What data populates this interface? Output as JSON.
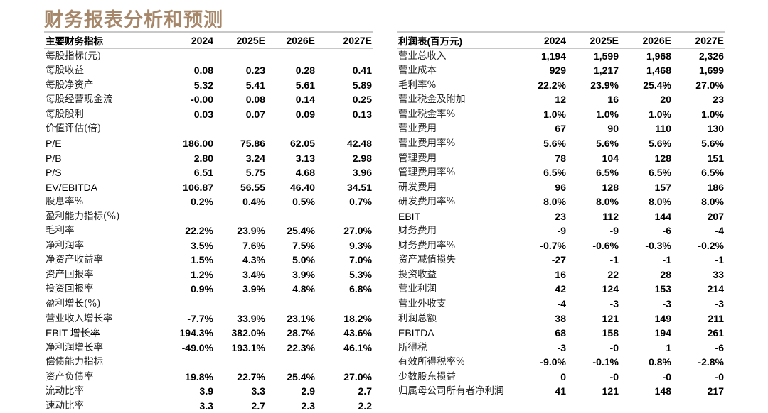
{
  "title": "财务报表分析和预测",
  "left_table": {
    "headers": [
      "主要财务指标",
      "2024",
      "2025E",
      "2026E",
      "2027E"
    ],
    "rows": [
      [
        "每股指标(元)",
        "",
        "",
        "",
        ""
      ],
      [
        "每股收益",
        "0.08",
        "0.23",
        "0.28",
        "0.41"
      ],
      [
        "每股净资产",
        "5.32",
        "5.41",
        "5.61",
        "5.89"
      ],
      [
        "每股经营现金流",
        "-0.00",
        "0.08",
        "0.14",
        "0.25"
      ],
      [
        "每股股利",
        "0.03",
        "0.07",
        "0.09",
        "0.13"
      ],
      [
        "价值评估(倍)",
        "",
        "",
        "",
        ""
      ],
      [
        "P/E",
        "186.00",
        "75.86",
        "62.05",
        "42.48"
      ],
      [
        "P/B",
        "2.80",
        "3.24",
        "3.13",
        "2.98"
      ],
      [
        "P/S",
        "6.51",
        "5.75",
        "4.68",
        "3.96"
      ],
      [
        "EV/EBITDA",
        "106.87",
        "56.55",
        "46.40",
        "34.51"
      ],
      [
        "股息率%",
        "0.2%",
        "0.4%",
        "0.5%",
        "0.7%"
      ],
      [
        "盈利能力指标(%)",
        "",
        "",
        "",
        ""
      ],
      [
        "毛利率",
        "22.2%",
        "23.9%",
        "25.4%",
        "27.0%"
      ],
      [
        "净利润率",
        "3.5%",
        "7.6%",
        "7.5%",
        "9.3%"
      ],
      [
        "净资产收益率",
        "1.5%",
        "4.3%",
        "5.0%",
        "7.0%"
      ],
      [
        "资产回报率",
        "1.2%",
        "3.4%",
        "3.9%",
        "5.3%"
      ],
      [
        "投资回报率",
        "0.9%",
        "3.9%",
        "4.8%",
        "6.8%"
      ],
      [
        "盈利增长(%)",
        "",
        "",
        "",
        ""
      ],
      [
        "营业收入增长率",
        "-7.7%",
        "33.9%",
        "23.1%",
        "18.2%"
      ],
      [
        "EBIT 增长率",
        "194.3%",
        "382.0%",
        "28.7%",
        "43.6%"
      ],
      [
        "净利润增长率",
        "-49.0%",
        "193.1%",
        "22.3%",
        "46.1%"
      ],
      [
        "偿债能力指标",
        "",
        "",
        "",
        ""
      ],
      [
        "资产负债率",
        "19.8%",
        "22.7%",
        "25.4%",
        "27.0%"
      ],
      [
        "流动比率",
        "3.9",
        "3.3",
        "2.9",
        "2.7"
      ],
      [
        "速动比率",
        "3.3",
        "2.7",
        "2.3",
        "2.2"
      ]
    ]
  },
  "right_table": {
    "headers": [
      "利润表(百万元)",
      "2024",
      "2025E",
      "2026E",
      "2027E"
    ],
    "rows": [
      [
        "营业总收入",
        "1,194",
        "1,599",
        "1,968",
        "2,326"
      ],
      [
        "营业成本",
        "929",
        "1,217",
        "1,468",
        "1,699"
      ],
      [
        "毛利率%",
        "22.2%",
        "23.9%",
        "25.4%",
        "27.0%"
      ],
      [
        "营业税金及附加",
        "12",
        "16",
        "20",
        "23"
      ],
      [
        "营业税金率%",
        "1.0%",
        "1.0%",
        "1.0%",
        "1.0%"
      ],
      [
        "营业费用",
        "67",
        "90",
        "110",
        "130"
      ],
      [
        "营业费用率%",
        "5.6%",
        "5.6%",
        "5.6%",
        "5.6%"
      ],
      [
        "管理费用",
        "78",
        "104",
        "128",
        "151"
      ],
      [
        "管理费用率%",
        "6.5%",
        "6.5%",
        "6.5%",
        "6.5%"
      ],
      [
        "研发费用",
        "96",
        "128",
        "157",
        "186"
      ],
      [
        "研发费用率%",
        "8.0%",
        "8.0%",
        "8.0%",
        "8.0%"
      ],
      [
        "EBIT",
        "23",
        "112",
        "144",
        "207"
      ],
      [
        "财务费用",
        "-9",
        "-9",
        "-6",
        "-4"
      ],
      [
        "财务费用率%",
        "-0.7%",
        "-0.6%",
        "-0.3%",
        "-0.2%"
      ],
      [
        "资产减值损失",
        "-27",
        "-1",
        "-1",
        "-1"
      ],
      [
        "投资收益",
        "16",
        "22",
        "28",
        "33"
      ],
      [
        "营业利润",
        "42",
        "124",
        "153",
        "214"
      ],
      [
        "营业外收支",
        "-4",
        "-3",
        "-3",
        "-3"
      ],
      [
        "利润总额",
        "38",
        "121",
        "149",
        "211"
      ],
      [
        "EBITDA",
        "68",
        "158",
        "194",
        "261"
      ],
      [
        "所得税",
        "-3",
        "-0",
        "1",
        "-6"
      ],
      [
        "有效所得税率%",
        "-9.0%",
        "-0.1%",
        "0.8%",
        "-2.8%"
      ],
      [
        "少数股东损益",
        "0",
        "-0",
        "-0",
        "-0"
      ],
      [
        "归属母公司所有者净利润",
        "41",
        "121",
        "148",
        "217"
      ]
    ]
  }
}
